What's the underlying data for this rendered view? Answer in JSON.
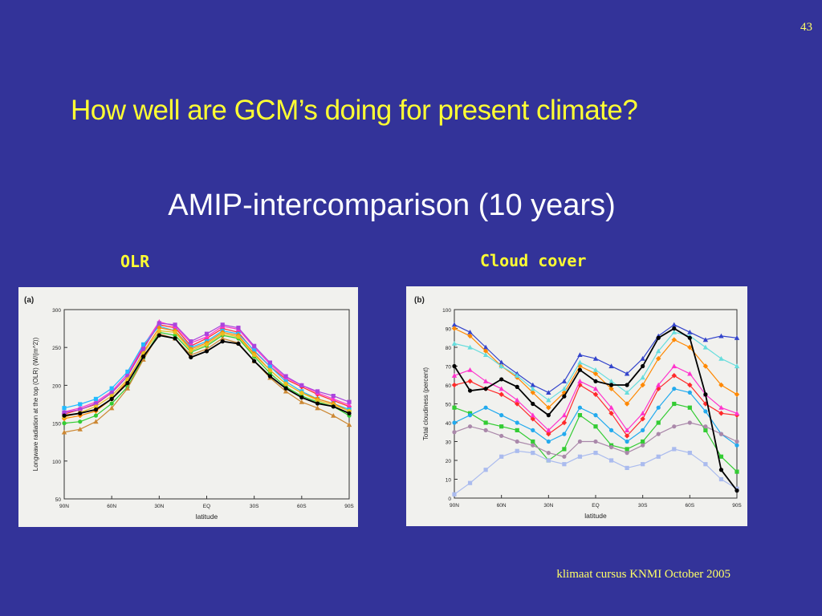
{
  "slide": {
    "number": "43",
    "title": "How well are GCM’s doing for present climate?",
    "subtitle": "AMIP-intercomparison (10 years)",
    "footer": "klimaat cursus KNMI  October 2005"
  },
  "panels": {
    "olr_label": "OLR",
    "cloud_label": "Cloud cover"
  },
  "chart_data": [
    {
      "type": "line",
      "panel_tag": "(a)",
      "xlabel": "latitude",
      "ylabel": "Longwave radiation at the top (OLR) (W/(m^2))",
      "x_ticks": [
        "90N",
        "60N",
        "30N",
        "EQ",
        "30S",
        "60S",
        "90S"
      ],
      "x": [
        90,
        80,
        70,
        60,
        50,
        40,
        30,
        20,
        10,
        0,
        -10,
        -20,
        -30,
        -40,
        -50,
        -60,
        -70,
        -80,
        -90
      ],
      "ylim": [
        50,
        300
      ],
      "y_ticks": [
        50,
        100,
        150,
        200,
        250,
        300
      ],
      "grid": false,
      "series": [
        {
          "color": "#000000",
          "values": [
            160,
            163,
            168,
            182,
            203,
            238,
            266,
            262,
            237,
            245,
            258,
            255,
            232,
            212,
            196,
            184,
            176,
            172,
            163
          ]
        },
        {
          "color": "#ff2a2a",
          "values": [
            162,
            168,
            175,
            190,
            212,
            250,
            280,
            276,
            252,
            262,
            275,
            270,
            245,
            225,
            208,
            198,
            188,
            180,
            172
          ]
        },
        {
          "color": "#ff33cc",
          "values": [
            165,
            170,
            178,
            192,
            215,
            252,
            284,
            278,
            256,
            264,
            278,
            274,
            250,
            228,
            210,
            200,
            190,
            182,
            174
          ]
        },
        {
          "color": "#22bbff",
          "values": [
            170,
            175,
            182,
            196,
            218,
            254,
            278,
            272,
            250,
            258,
            272,
            268,
            246,
            225,
            205,
            192,
            182,
            176,
            168
          ]
        },
        {
          "color": "#33cc33",
          "values": [
            150,
            152,
            160,
            176,
            198,
            236,
            270,
            266,
            244,
            252,
            266,
            262,
            238,
            216,
            198,
            186,
            178,
            172,
            160
          ]
        },
        {
          "color": "#cc8833",
          "values": [
            138,
            142,
            152,
            170,
            196,
            234,
            268,
            262,
            240,
            248,
            262,
            256,
            232,
            210,
            192,
            178,
            170,
            160,
            148
          ]
        },
        {
          "color": "#ff8800",
          "values": [
            156,
            160,
            166,
            182,
            206,
            244,
            276,
            272,
            248,
            256,
            270,
            266,
            242,
            220,
            202,
            190,
            182,
            176,
            166
          ]
        },
        {
          "color": "#aa44dd",
          "values": [
            164,
            168,
            176,
            190,
            212,
            248,
            282,
            280,
            258,
            268,
            280,
            276,
            252,
            230,
            212,
            200,
            192,
            186,
            178
          ]
        },
        {
          "color": "#e8c020",
          "values": [
            158,
            164,
            172,
            186,
            208,
            242,
            272,
            270,
            246,
            254,
            268,
            264,
            240,
            220,
            202,
            190,
            180,
            174,
            166
          ]
        }
      ]
    },
    {
      "type": "line",
      "panel_tag": "(b)",
      "xlabel": "latitude",
      "ylabel": "Total cloudiness (percent)",
      "x_ticks": [
        "90N",
        "60N",
        "30N",
        "EQ",
        "30S",
        "60S",
        "90S"
      ],
      "x": [
        90,
        80,
        70,
        60,
        50,
        40,
        30,
        20,
        10,
        0,
        -10,
        -20,
        -30,
        -40,
        -50,
        -60,
        -70,
        -80,
        -90
      ],
      "ylim": [
        0,
        100
      ],
      "y_ticks": [
        0,
        10,
        20,
        30,
        40,
        50,
        60,
        70,
        80,
        90,
        100
      ],
      "grid": false,
      "series": [
        {
          "color": "#000000",
          "values": [
            70,
            57,
            58,
            63,
            59,
            50,
            44,
            54,
            68,
            62,
            60,
            60,
            70,
            85,
            90,
            85,
            55,
            15,
            4
          ]
        },
        {
          "color": "#ff2a2a",
          "values": [
            60,
            62,
            58,
            55,
            50,
            42,
            34,
            40,
            60,
            55,
            45,
            33,
            42,
            58,
            65,
            60,
            50,
            45,
            44
          ]
        },
        {
          "color": "#ff33cc",
          "values": [
            65,
            68,
            62,
            58,
            52,
            44,
            36,
            44,
            62,
            58,
            48,
            36,
            45,
            60,
            70,
            66,
            55,
            48,
            45
          ]
        },
        {
          "color": "#33cc33",
          "values": [
            48,
            45,
            40,
            38,
            36,
            30,
            20,
            26,
            44,
            38,
            28,
            26,
            30,
            40,
            50,
            48,
            36,
            22,
            14
          ]
        },
        {
          "color": "#22aaee",
          "values": [
            40,
            44,
            48,
            44,
            40,
            36,
            30,
            34,
            48,
            44,
            36,
            30,
            36,
            48,
            58,
            56,
            46,
            34,
            28
          ]
        },
        {
          "color": "#3344cc",
          "values": [
            92,
            88,
            80,
            72,
            66,
            60,
            56,
            62,
            76,
            74,
            70,
            66,
            74,
            86,
            92,
            88,
            84,
            86,
            85
          ]
        },
        {
          "color": "#ff8800",
          "values": [
            90,
            86,
            78,
            70,
            64,
            56,
            48,
            56,
            70,
            66,
            58,
            50,
            60,
            74,
            84,
            80,
            70,
            60,
            55
          ]
        },
        {
          "color": "#aabbee",
          "values": [
            2,
            8,
            15,
            22,
            25,
            24,
            20,
            18,
            22,
            24,
            20,
            16,
            18,
            22,
            26,
            24,
            18,
            10,
            5
          ]
        },
        {
          "color": "#aa88aa",
          "values": [
            35,
            38,
            36,
            33,
            30,
            28,
            24,
            22,
            30,
            30,
            27,
            24,
            28,
            34,
            38,
            40,
            38,
            34,
            30
          ]
        },
        {
          "color": "#66dddd",
          "values": [
            82,
            80,
            76,
            70,
            65,
            58,
            52,
            58,
            72,
            68,
            62,
            56,
            64,
            78,
            88,
            86,
            80,
            74,
            70
          ]
        }
      ]
    }
  ]
}
